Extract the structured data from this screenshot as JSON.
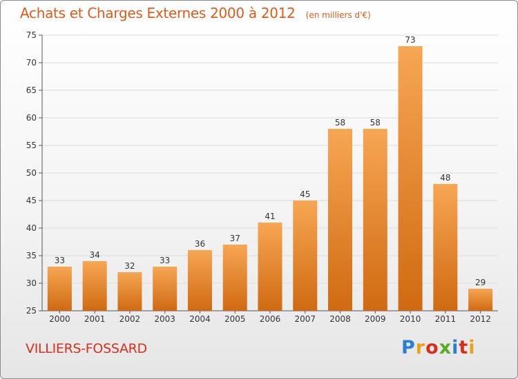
{
  "chart_data": {
    "type": "bar",
    "title": "Achats et Charges Externes 2000 à 2012",
    "subtitle": "(en milliers d'€)",
    "categories": [
      "2000",
      "2001",
      "2002",
      "2003",
      "2004",
      "2005",
      "2006",
      "2007",
      "2008",
      "2009",
      "2010",
      "2011",
      "2012"
    ],
    "values": [
      33,
      34,
      32,
      33,
      36,
      37,
      41,
      45,
      58,
      58,
      73,
      48,
      29
    ],
    "ylim": [
      25,
      75
    ],
    "yticks": [
      25,
      30,
      35,
      40,
      45,
      50,
      55,
      60,
      65,
      70,
      75
    ],
    "grid": true,
    "colors": {
      "bar_top": "#f7a653",
      "bar_bottom": "#d06a12",
      "grid": "#dcdcdc",
      "axis": "#555555",
      "text": "#333333",
      "title": "#e05a1a"
    }
  },
  "footer": {
    "commune": "VILLIERS-FOSSARD",
    "brand": "Proxiti",
    "brand_colors": [
      "#2a7fd4",
      "#e8a21a",
      "#d6301c",
      "#5aaa2a",
      "#2a7fd4",
      "#d6301c",
      "#e8a21a"
    ]
  }
}
